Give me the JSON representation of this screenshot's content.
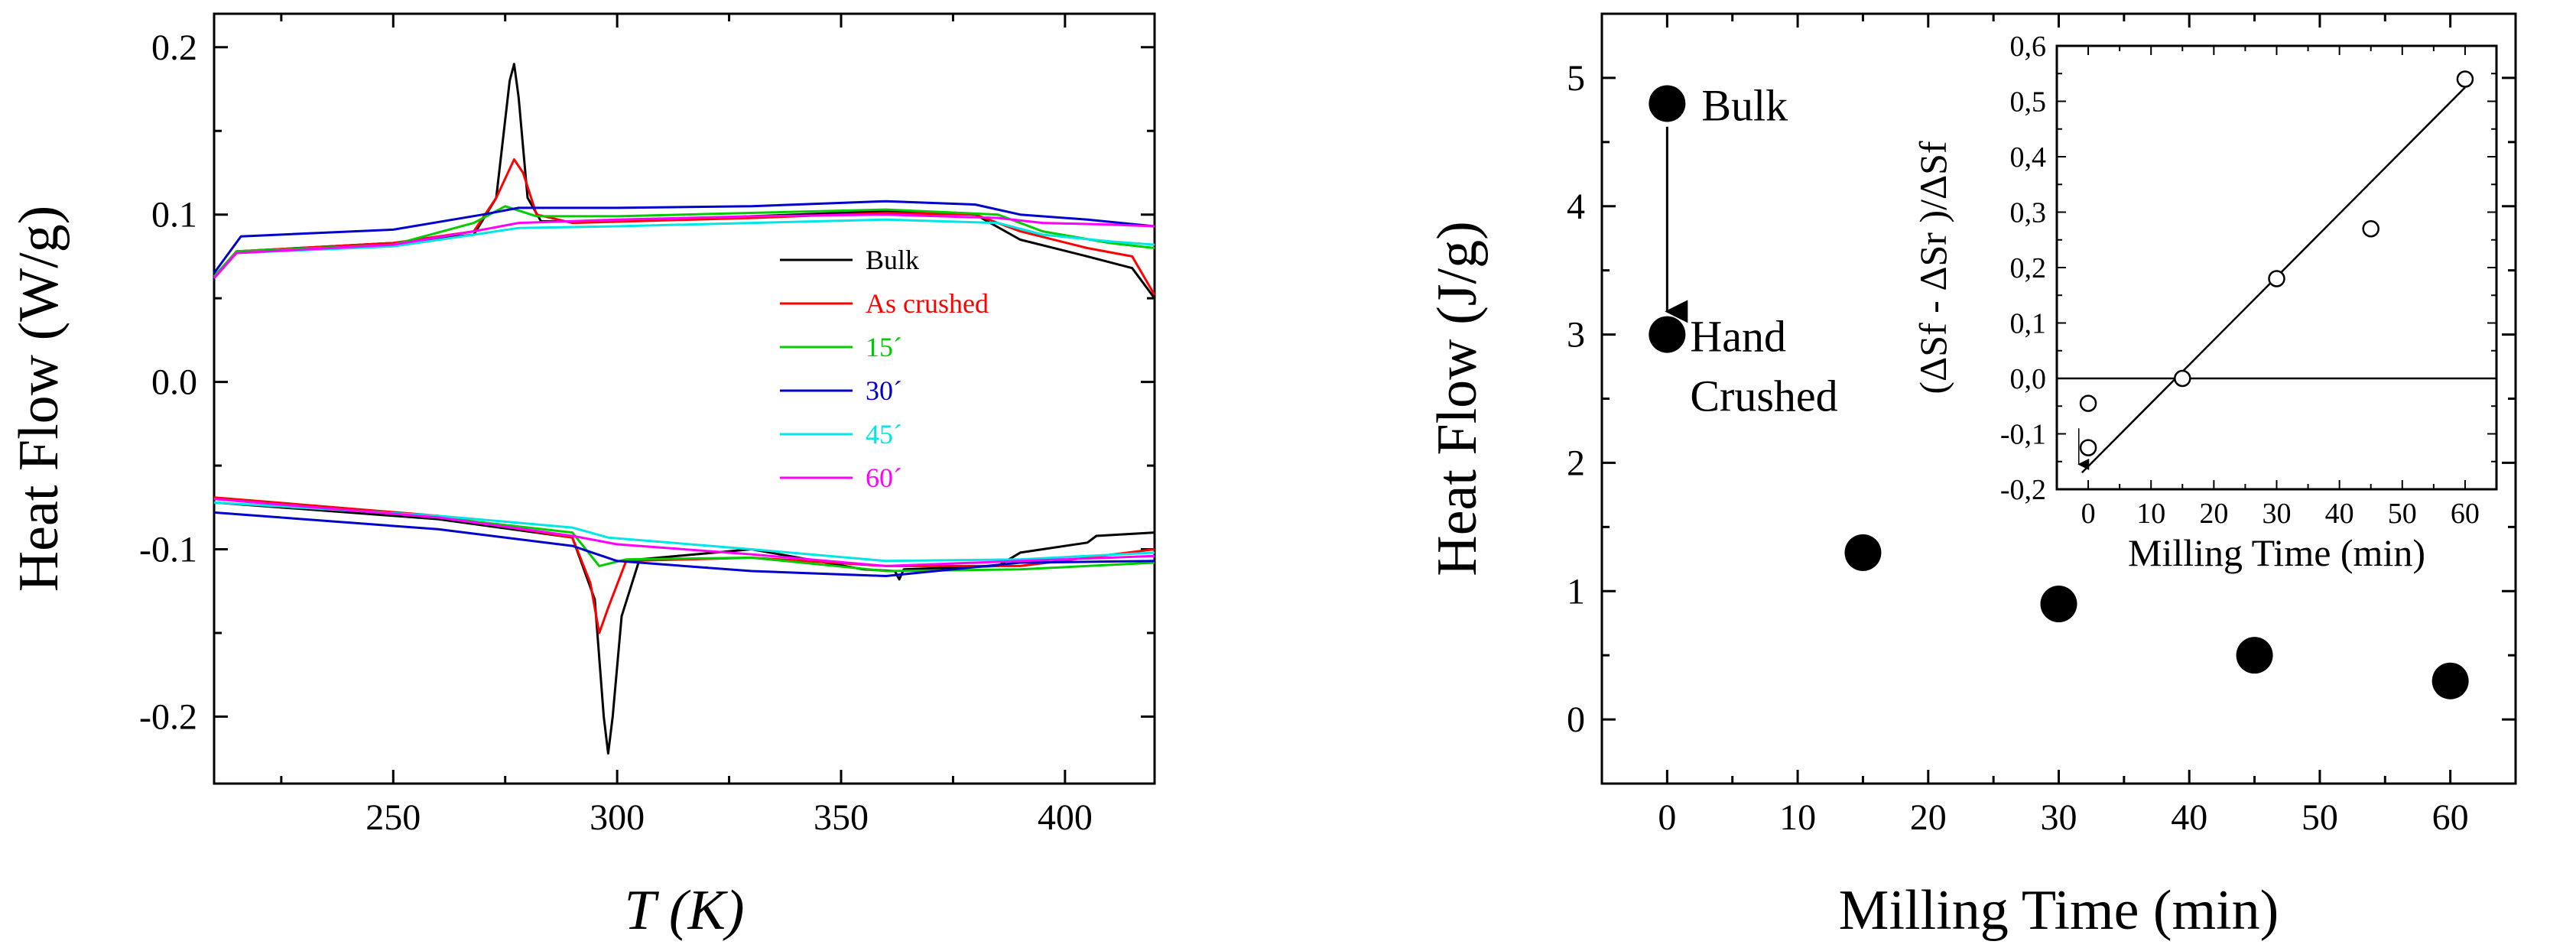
{
  "chart_data": [
    {
      "type": "line",
      "ylabel": "Heat Flow (W/g)",
      "xlabel": "T (K)",
      "xlim": [
        210,
        420
      ],
      "ylim": [
        -0.24,
        0.22
      ],
      "xticks": [
        250,
        300,
        350,
        400
      ],
      "yticks": [
        0.2,
        0.1,
        0.0,
        -0.1,
        -0.2
      ],
      "ytick_labels": [
        "0.2",
        "0.1",
        "0.0",
        "-0.1",
        "-0.2"
      ],
      "legend": [
        {
          "label": "Bulk",
          "color": "#000000"
        },
        {
          "label": "As crushed",
          "color": "#ff0000"
        },
        {
          "label": "15´",
          "color": "#00cc00"
        },
        {
          "label": "30´",
          "color": "#0000cc"
        },
        {
          "label": "45´",
          "color": "#00e5e5"
        },
        {
          "label": "60´",
          "color": "#ff00ff"
        }
      ],
      "series": [
        {
          "name": "Bulk",
          "color": "#000000",
          "heating": [
            [
              210,
              0.062
            ],
            [
              215,
              0.078
            ],
            [
              250,
              0.083
            ],
            [
              268,
              0.088
            ],
            [
              273,
              0.11
            ],
            [
              276,
              0.18
            ],
            [
              277,
              0.19
            ],
            [
              278,
              0.17
            ],
            [
              280,
              0.11
            ],
            [
              283,
              0.096
            ],
            [
              300,
              0.096
            ],
            [
              330,
              0.099
            ],
            [
              360,
              0.102
            ],
            [
              380,
              0.1
            ],
            [
              390,
              0.085
            ],
            [
              405,
              0.075
            ],
            [
              415,
              0.068
            ],
            [
              420,
              0.05
            ]
          ],
          "cooling": [
            [
              210,
              -0.072
            ],
            [
              260,
              -0.082
            ],
            [
              290,
              -0.093
            ],
            [
              295,
              -0.13
            ],
            [
              297,
              -0.2
            ],
            [
              298,
              -0.222
            ],
            [
              299,
              -0.2
            ],
            [
              301,
              -0.14
            ],
            [
              305,
              -0.106
            ],
            [
              330,
              -0.1
            ],
            [
              355,
              -0.112
            ],
            [
              362,
              -0.113
            ],
            [
              363,
              -0.118
            ],
            [
              364,
              -0.112
            ],
            [
              385,
              -0.11
            ],
            [
              390,
              -0.102
            ],
            [
              405,
              -0.096
            ],
            [
              407,
              -0.092
            ],
            [
              420,
              -0.09
            ]
          ]
        },
        {
          "name": "As crushed",
          "color": "#ff0000",
          "heating": [
            [
              210,
              0.063
            ],
            [
              215,
              0.078
            ],
            [
              250,
              0.083
            ],
            [
              268,
              0.09
            ],
            [
              273,
              0.11
            ],
            [
              277,
              0.133
            ],
            [
              279,
              0.125
            ],
            [
              282,
              0.1
            ],
            [
              290,
              0.095
            ],
            [
              330,
              0.098
            ],
            [
              360,
              0.101
            ],
            [
              380,
              0.1
            ],
            [
              390,
              0.09
            ],
            [
              405,
              0.08
            ],
            [
              415,
              0.075
            ],
            [
              420,
              0.052
            ]
          ],
          "cooling": [
            [
              210,
              -0.069
            ],
            [
              260,
              -0.08
            ],
            [
              290,
              -0.093
            ],
            [
              294,
              -0.12
            ],
            [
              296,
              -0.15
            ],
            [
              298,
              -0.135
            ],
            [
              302,
              -0.107
            ],
            [
              330,
              -0.105
            ],
            [
              360,
              -0.11
            ],
            [
              390,
              -0.11
            ],
            [
              420,
              -0.1
            ]
          ]
        },
        {
          "name": "15´",
          "color": "#00cc00",
          "heating": [
            [
              210,
              0.063
            ],
            [
              215,
              0.078
            ],
            [
              250,
              0.082
            ],
            [
              268,
              0.095
            ],
            [
              275,
              0.105
            ],
            [
              282,
              0.099
            ],
            [
              300,
              0.099
            ],
            [
              330,
              0.101
            ],
            [
              360,
              0.103
            ],
            [
              385,
              0.1
            ],
            [
              395,
              0.09
            ],
            [
              410,
              0.083
            ],
            [
              420,
              0.08
            ]
          ],
          "cooling": [
            [
              210,
              -0.07
            ],
            [
              260,
              -0.081
            ],
            [
              290,
              -0.09
            ],
            [
              296,
              -0.11
            ],
            [
              302,
              -0.106
            ],
            [
              330,
              -0.105
            ],
            [
              360,
              -0.113
            ],
            [
              390,
              -0.112
            ],
            [
              420,
              -0.108
            ]
          ]
        },
        {
          "name": "30´",
          "color": "#0000cc",
          "heating": [
            [
              210,
              0.065
            ],
            [
              216,
              0.087
            ],
            [
              250,
              0.091
            ],
            [
              270,
              0.1
            ],
            [
              278,
              0.104
            ],
            [
              300,
              0.104
            ],
            [
              330,
              0.105
            ],
            [
              360,
              0.108
            ],
            [
              380,
              0.106
            ],
            [
              390,
              0.1
            ],
            [
              405,
              0.097
            ],
            [
              420,
              0.093
            ]
          ],
          "cooling": [
            [
              210,
              -0.078
            ],
            [
              260,
              -0.088
            ],
            [
              290,
              -0.098
            ],
            [
              300,
              -0.107
            ],
            [
              330,
              -0.113
            ],
            [
              360,
              -0.116
            ],
            [
              390,
              -0.108
            ],
            [
              420,
              -0.107
            ]
          ]
        },
        {
          "name": "45´",
          "color": "#00e5e5",
          "heating": [
            [
              210,
              0.062
            ],
            [
              215,
              0.077
            ],
            [
              250,
              0.081
            ],
            [
              268,
              0.088
            ],
            [
              278,
              0.092
            ],
            [
              300,
              0.093
            ],
            [
              330,
              0.095
            ],
            [
              360,
              0.097
            ],
            [
              385,
              0.095
            ],
            [
              395,
              0.088
            ],
            [
              410,
              0.084
            ],
            [
              420,
              0.082
            ]
          ],
          "cooling": [
            [
              210,
              -0.072
            ],
            [
              260,
              -0.08
            ],
            [
              290,
              -0.087
            ],
            [
              298,
              -0.093
            ],
            [
              330,
              -0.1
            ],
            [
              360,
              -0.107
            ],
            [
              390,
              -0.106
            ],
            [
              420,
              -0.102
            ]
          ]
        },
        {
          "name": "60´",
          "color": "#ff00ff",
          "heating": [
            [
              210,
              0.062
            ],
            [
              215,
              0.077
            ],
            [
              250,
              0.082
            ],
            [
              268,
              0.09
            ],
            [
              278,
              0.095
            ],
            [
              300,
              0.097
            ],
            [
              330,
              0.099
            ],
            [
              360,
              0.1
            ],
            [
              385,
              0.098
            ],
            [
              395,
              0.095
            ],
            [
              410,
              0.094
            ],
            [
              420,
              0.093
            ]
          ],
          "cooling": [
            [
              210,
              -0.07
            ],
            [
              260,
              -0.081
            ],
            [
              290,
              -0.092
            ],
            [
              300,
              -0.097
            ],
            [
              330,
              -0.103
            ],
            [
              360,
              -0.11
            ],
            [
              390,
              -0.107
            ],
            [
              420,
              -0.104
            ]
          ]
        }
      ]
    },
    {
      "type": "scatter",
      "ylabel": "Heat Flow (J/g)",
      "xlabel": "Milling Time (min)",
      "xlim": [
        -5,
        65
      ],
      "ylim": [
        -0.5,
        5.5
      ],
      "xticks": [
        0,
        10,
        20,
        30,
        40,
        50,
        60
      ],
      "yticks": [
        0,
        1,
        2,
        3,
        4,
        5
      ],
      "x": [
        0,
        0,
        15,
        30,
        45,
        60
      ],
      "y": [
        4.8,
        3.0,
        1.3,
        0.9,
        0.5,
        0.3
      ],
      "annotations": [
        {
          "text": "Bulk",
          "x": 0,
          "y": 4.8
        },
        {
          "text": "Hand",
          "x": 0,
          "y": 3.0
        },
        {
          "text": "Crushed",
          "x": 0,
          "y": 3.0
        }
      ],
      "arrow": {
        "from": [
          0,
          4.62
        ],
        "to": [
          0,
          3.18
        ]
      }
    },
    {
      "type": "scatter",
      "inset": true,
      "ylabel": "(ΔSf - ΔSr )/ΔSf",
      "xlabel": "Milling Time (min)",
      "xlim": [
        -5,
        65
      ],
      "ylim": [
        -0.2,
        0.6
      ],
      "xticks": [
        0,
        10,
        20,
        30,
        40,
        50,
        60
      ],
      "yticks": [
        -0.2,
        -0.1,
        0.0,
        0.1,
        0.2,
        0.3,
        0.4,
        0.5,
        0.6
      ],
      "ytick_labels": [
        "-0,2",
        "-0,1",
        "0,0",
        "0,1",
        "0,2",
        "0,3",
        "0,4",
        "0,5",
        "0,6"
      ],
      "x": [
        0,
        0,
        15,
        30,
        45,
        60
      ],
      "y": [
        -0.045,
        -0.125,
        0.0,
        0.18,
        0.27,
        0.54
      ],
      "fit_line": {
        "x": [
          -1,
          60
        ],
        "y": [
          -0.17,
          0.525
        ]
      },
      "zero_line": 0,
      "arrow": {
        "from": [
          -1.5,
          -0.09
        ],
        "to": [
          -1.5,
          -0.155
        ]
      }
    }
  ]
}
